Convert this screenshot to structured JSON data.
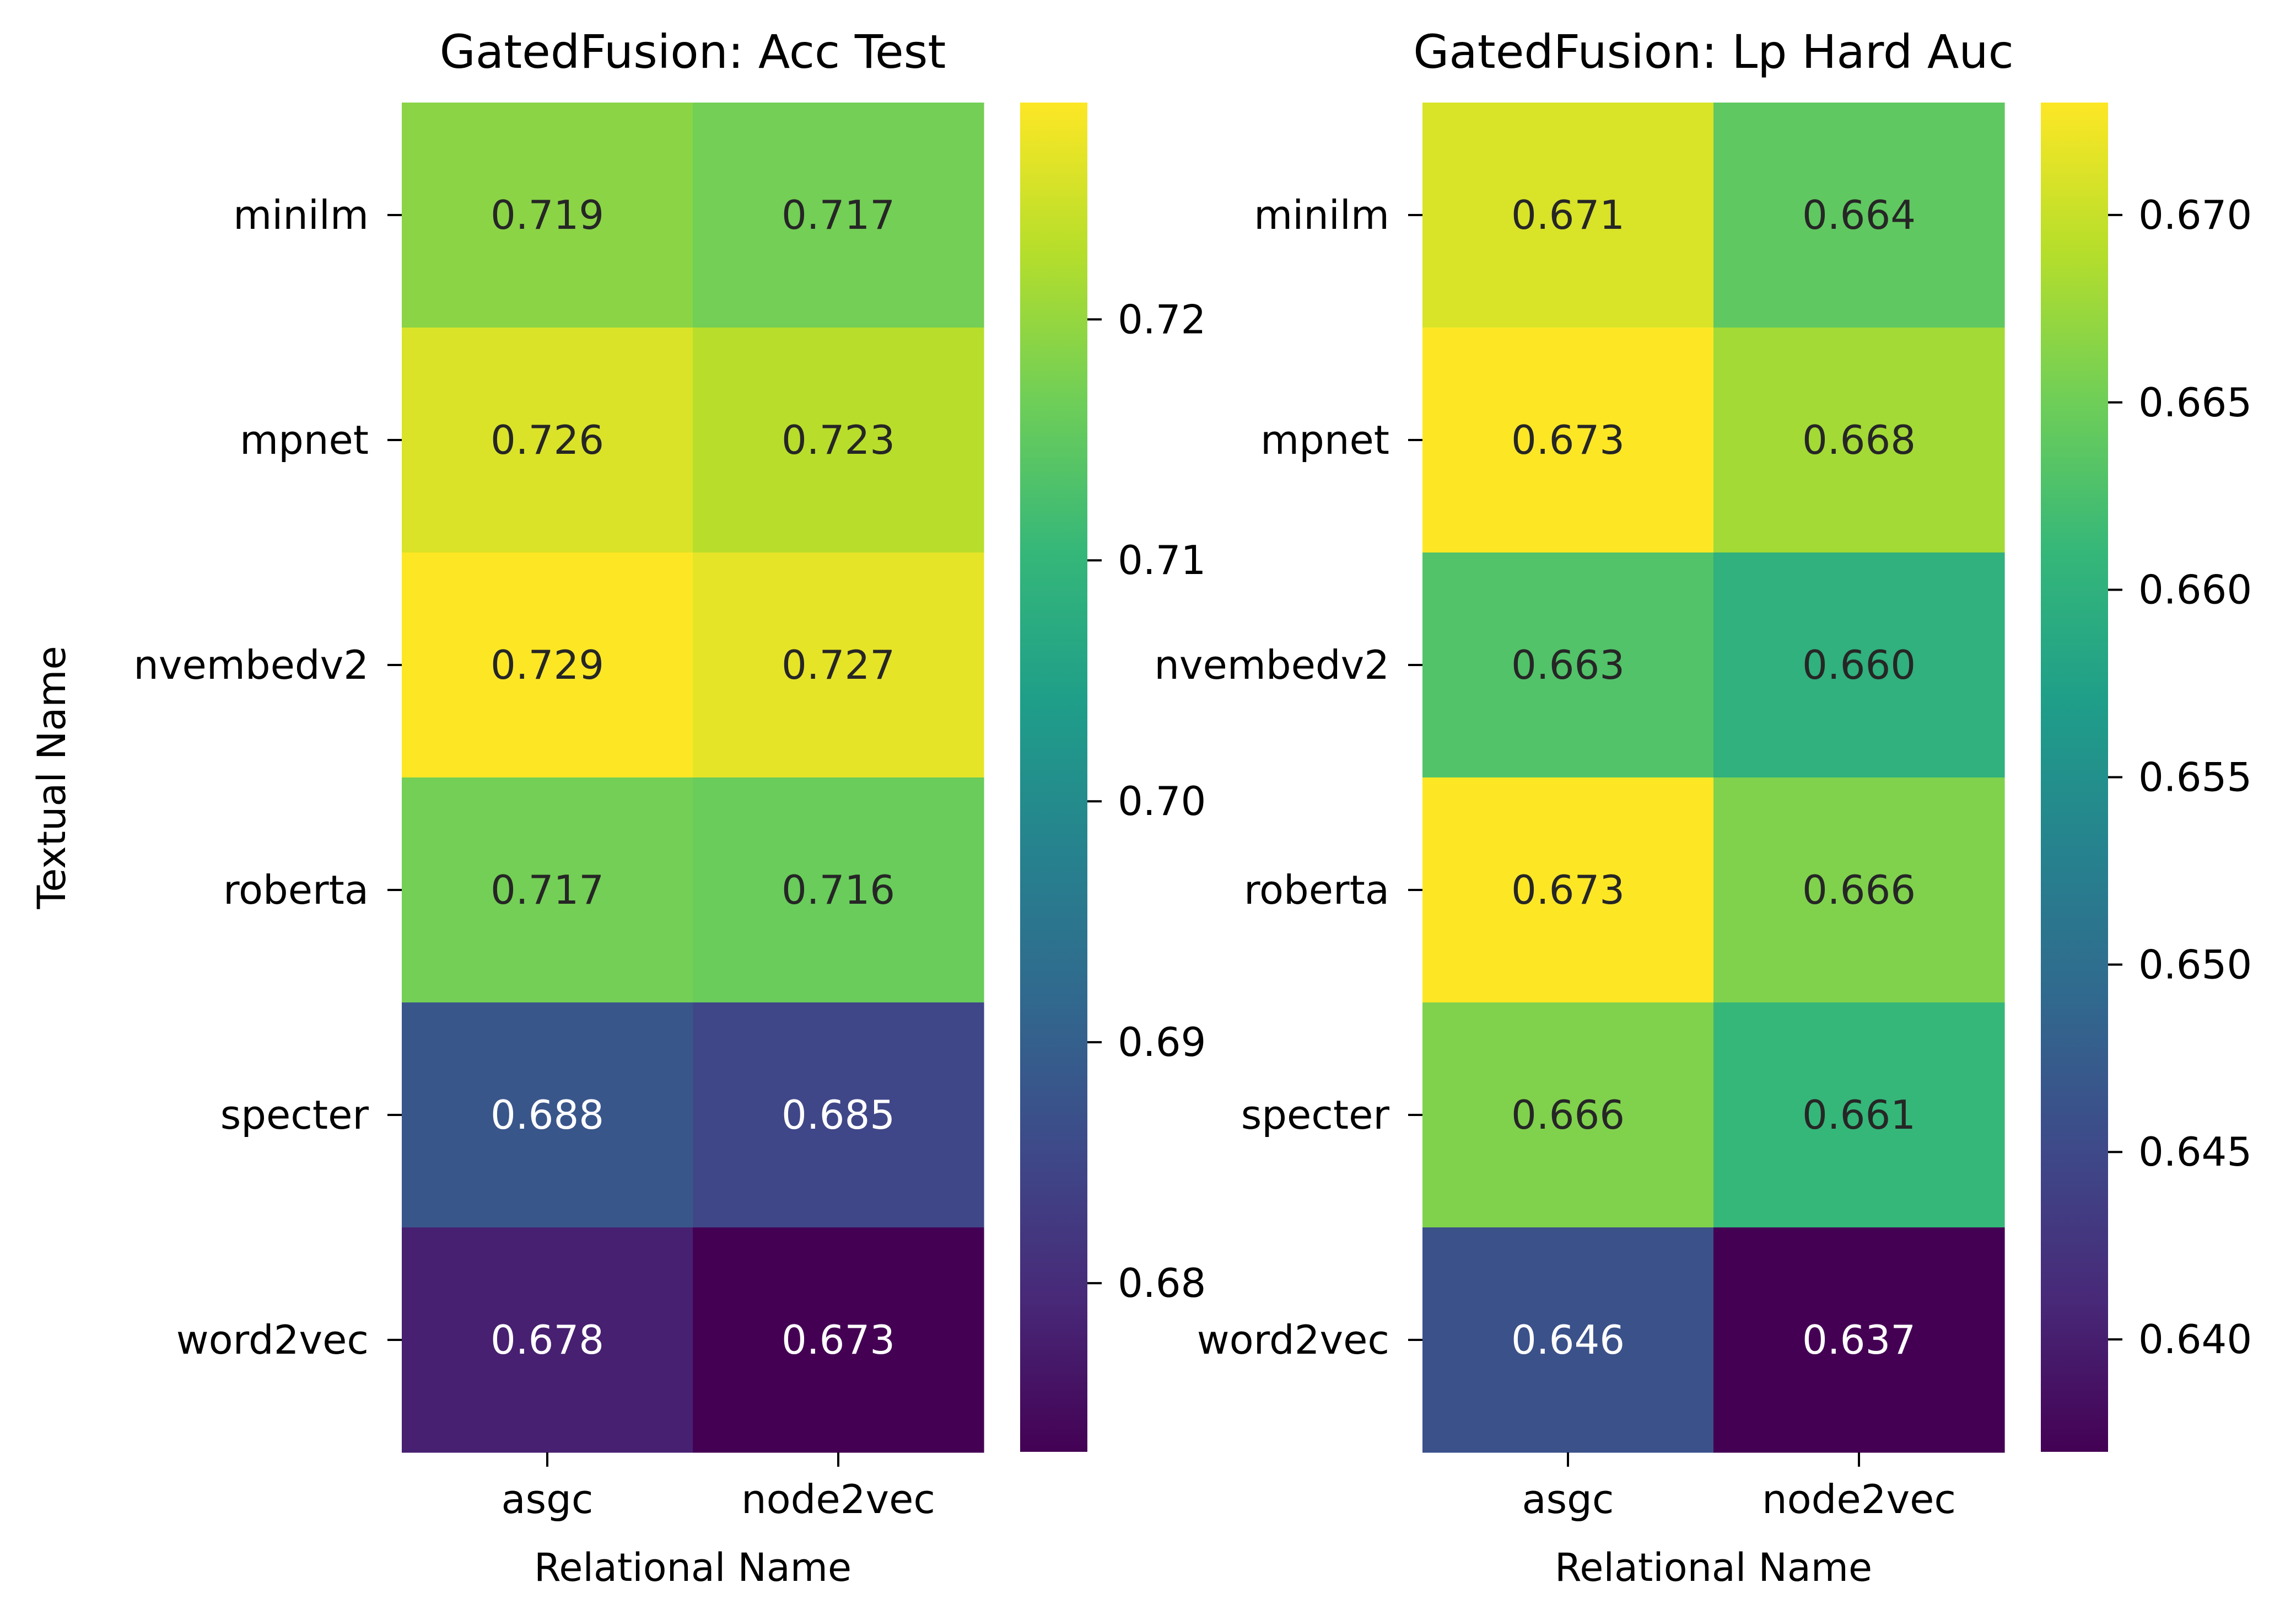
{
  "colormap": "viridis",
  "colors": {
    "viridis": [
      "#440154",
      "#482878",
      "#3e4989",
      "#31688e",
      "#26828e",
      "#1f9e89",
      "#35b779",
      "#6ece58",
      "#b5de2b",
      "#fde725"
    ],
    "text_dark": "#262626",
    "text_light": "#ffffff",
    "axis": "#000000"
  },
  "chart_data": [
    {
      "type": "heatmap",
      "title": "GatedFusion: Acc Test",
      "xlabel": "Relational Name",
      "ylabel": "Textual Name",
      "x_categories": [
        "asgc",
        "node2vec"
      ],
      "y_categories": [
        "minilm",
        "mpnet",
        "nvembedv2",
        "roberta",
        "specter",
        "word2vec"
      ],
      "values": [
        [
          0.719,
          0.717
        ],
        [
          0.726,
          0.723
        ],
        [
          0.729,
          0.727
        ],
        [
          0.717,
          0.716
        ],
        [
          0.688,
          0.685
        ],
        [
          0.678,
          0.673
        ]
      ],
      "cell_labels": [
        [
          "0.719",
          "0.717"
        ],
        [
          "0.726",
          "0.723"
        ],
        [
          "0.729",
          "0.727"
        ],
        [
          "0.717",
          "0.716"
        ],
        [
          "0.688",
          "0.685"
        ],
        [
          "0.678",
          "0.673"
        ]
      ],
      "colorbar": {
        "range": [
          0.673,
          0.729
        ],
        "ticks": [
          0.68,
          0.69,
          0.7,
          0.71,
          0.72
        ],
        "tick_labels": [
          "0.68",
          "0.69",
          "0.70",
          "0.71",
          "0.72"
        ]
      },
      "grid": false
    },
    {
      "type": "heatmap",
      "title": "GatedFusion: Lp Hard Auc",
      "xlabel": "Relational Name",
      "ylabel": "",
      "x_categories": [
        "asgc",
        "node2vec"
      ],
      "y_categories": [
        "minilm",
        "mpnet",
        "nvembedv2",
        "roberta",
        "specter",
        "word2vec"
      ],
      "values": [
        [
          0.671,
          0.664
        ],
        [
          0.673,
          0.668
        ],
        [
          0.663,
          0.66
        ],
        [
          0.673,
          0.666
        ],
        [
          0.666,
          0.661
        ],
        [
          0.646,
          0.637
        ]
      ],
      "cell_labels": [
        [
          "0.671",
          "0.664"
        ],
        [
          "0.673",
          "0.668"
        ],
        [
          "0.663",
          "0.660"
        ],
        [
          "0.673",
          "0.666"
        ],
        [
          "0.666",
          "0.661"
        ],
        [
          "0.646",
          "0.637"
        ]
      ],
      "colorbar": {
        "range": [
          0.637,
          0.673
        ],
        "ticks": [
          0.64,
          0.645,
          0.65,
          0.655,
          0.66,
          0.665,
          0.67
        ],
        "tick_labels": [
          "0.640",
          "0.645",
          "0.650",
          "0.655",
          "0.660",
          "0.665",
          "0.670"
        ]
      },
      "grid": false
    }
  ]
}
